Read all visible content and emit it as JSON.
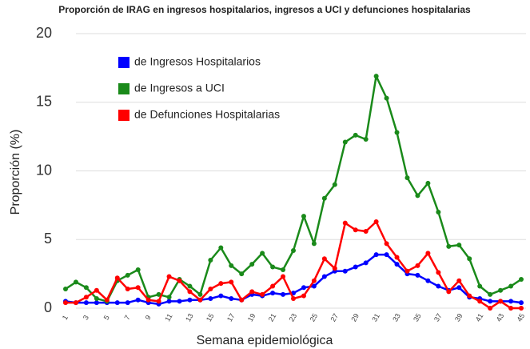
{
  "chart_data": {
    "type": "line",
    "title": "Proporción de IRAG en ingresos hospitalarios, ingresos a UCI y defunciones hospitalarias",
    "x_label": "Semana epidemiológica",
    "y_label": "Proporción (%)",
    "categories": [
      1,
      null,
      3,
      null,
      5,
      null,
      7,
      null,
      9,
      null,
      11,
      null,
      13,
      null,
      15,
      null,
      17,
      null,
      19,
      null,
      21,
      null,
      23,
      null,
      25,
      null,
      27,
      null,
      29,
      null,
      31,
      null,
      33,
      null,
      35,
      null,
      37,
      null,
      39,
      null,
      41,
      null,
      43,
      null,
      45
    ],
    "ylim": [
      0,
      20
    ],
    "yticks": [
      0,
      5,
      10,
      15,
      20
    ],
    "grid": true,
    "series": [
      {
        "name": "de Ingresos Hospitalarios",
        "color": "#0000ff",
        "values": [
          0.5,
          0.4,
          0.4,
          0.4,
          0.4,
          0.4,
          0.4,
          0.6,
          0.4,
          0.3,
          0.5,
          0.5,
          0.6,
          0.6,
          0.7,
          0.9,
          0.7,
          0.6,
          1.0,
          0.9,
          1.1,
          1.0,
          1.1,
          1.5,
          1.6,
          2.3,
          2.7,
          2.7,
          3.0,
          3.3,
          3.9,
          3.9,
          3.2,
          2.5,
          2.4,
          2.0,
          1.6,
          1.3,
          1.5,
          0.8,
          0.7,
          0.5,
          0.5,
          0.5,
          0.4
        ]
      },
      {
        "name": "de Ingresos a UCI",
        "color": "#1a8a1a",
        "values": [
          1.4,
          1.9,
          1.5,
          0.7,
          0.5,
          2.0,
          2.4,
          2.8,
          0.8,
          1.0,
          0.8,
          2.1,
          1.6,
          1.0,
          3.5,
          4.4,
          3.1,
          2.5,
          3.2,
          4.0,
          3.0,
          2.8,
          4.2,
          6.7,
          4.7,
          8.0,
          9.0,
          12.1,
          12.6,
          12.3,
          16.9,
          15.3,
          12.8,
          9.5,
          8.2,
          9.1,
          7.0,
          4.5,
          4.6,
          3.6,
          1.6,
          1.0,
          1.3,
          1.6,
          2.1
        ]
      },
      {
        "name": "de Defunciones Hospitalarias",
        "color": "#ff0000",
        "values": [
          0.4,
          0.4,
          0.8,
          1.3,
          0.6,
          2.2,
          1.4,
          1.5,
          0.6,
          0.5,
          2.3,
          2.0,
          1.2,
          0.6,
          1.4,
          1.8,
          1.9,
          0.6,
          1.2,
          1.0,
          1.6,
          2.3,
          0.7,
          0.9,
          2.0,
          3.6,
          2.9,
          6.2,
          5.7,
          5.6,
          6.3,
          4.7,
          3.7,
          2.7,
          3.1,
          4.0,
          2.6,
          1.2,
          2.0,
          0.9,
          0.5,
          0.0,
          0.5,
          0.0,
          0.0
        ]
      }
    ]
  }
}
